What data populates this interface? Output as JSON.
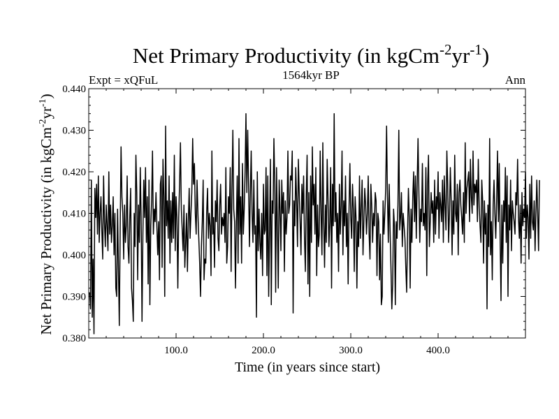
{
  "chart_data": {
    "type": "line",
    "title": "Net Primary Productivity (in kgCm",
    "title_sup1": "-2",
    "title_mid": "yr",
    "title_sup2": "-1",
    "title_end": ")",
    "subtitle_left": "Expt = xQFuL",
    "subtitle_center": "1564kyr BP",
    "subtitle_right": "Ann",
    "xlabel": "Time (in years since start)",
    "ylabel": "Net Primary Productivity (in kgCm",
    "ylabel_sup1": "-2",
    "ylabel_mid": "yr",
    "ylabel_sup2": "-1",
    "ylabel_end": ")",
    "xlim": [
      0,
      500
    ],
    "ylim": [
      0.38,
      0.44
    ],
    "xticks": [
      100,
      200,
      300,
      400
    ],
    "xtick_labels": [
      "100.0",
      "200.0",
      "300.0",
      "400.0"
    ],
    "yticks": [
      0.38,
      0.39,
      0.4,
      0.41,
      0.42,
      0.43,
      0.44
    ],
    "ytick_labels": [
      "0.380",
      "0.390",
      "0.400",
      "0.410",
      "0.420",
      "0.430",
      "0.440"
    ],
    "series": [
      {
        "name": "Ann",
        "x_start": 1,
        "x_step": 1,
        "values": [
          0.391,
          0.387,
          0.418,
          0.385,
          0.399,
          0.381,
          0.416,
          0.409,
          0.417,
          0.405,
          0.419,
          0.403,
          0.41,
          0.414,
          0.406,
          0.399,
          0.419,
          0.408,
          0.402,
          0.412,
          0.407,
          0.401,
          0.42,
          0.405,
          0.412,
          0.403,
          0.407,
          0.414,
          0.4,
          0.41,
          0.392,
          0.39,
          0.411,
          0.397,
          0.383,
          0.406,
          0.426,
          0.414,
          0.41,
          0.399,
          0.412,
          0.403,
          0.407,
          0.419,
          0.402,
          0.398,
          0.409,
          0.416,
          0.392,
          0.389,
          0.384,
          0.41,
          0.402,
          0.424,
          0.415,
          0.394,
          0.412,
          0.403,
          0.421,
          0.409,
          0.384,
          0.405,
          0.418,
          0.409,
          0.421,
          0.403,
          0.414,
          0.393,
          0.418,
          0.388,
          0.407,
          0.413,
          0.425,
          0.405,
          0.411,
          0.408,
          0.415,
          0.407,
          0.4,
          0.408,
          0.394,
          0.417,
          0.419,
          0.397,
          0.423,
          0.414,
          0.39,
          0.431,
          0.407,
          0.413,
          0.404,
          0.419,
          0.398,
          0.413,
          0.403,
          0.415,
          0.404,
          0.424,
          0.401,
          0.414,
          0.409,
          0.392,
          0.409,
          0.417,
          0.427,
          0.411,
          0.406,
          0.401,
          0.412,
          0.397,
          0.403,
          0.41,
          0.396,
          0.408,
          0.416,
          0.404,
          0.41,
          0.415,
          0.428,
          0.417,
          0.422,
          0.41,
          0.405,
          0.418,
          0.41,
          0.404,
          0.398,
          0.39,
          0.402,
          0.408,
          0.418,
          0.394,
          0.399,
          0.398,
          0.41,
          0.416,
          0.404,
          0.41,
          0.407,
          0.395,
          0.425,
          0.405,
          0.409,
          0.397,
          0.413,
          0.408,
          0.418,
          0.404,
          0.401,
          0.412,
          0.417,
          0.405,
          0.409,
          0.407,
          0.41,
          0.403,
          0.421,
          0.398,
          0.402,
          0.414,
          0.41,
          0.421,
          0.396,
          0.416,
          0.43,
          0.411,
          0.408,
          0.392,
          0.408,
          0.419,
          0.398,
          0.428,
          0.405,
          0.414,
          0.398,
          0.422,
          0.405,
          0.411,
          0.42,
          0.434,
          0.415,
          0.43,
          0.417,
          0.402,
          0.415,
          0.425,
          0.41,
          0.403,
          0.418,
          0.405,
          0.407,
          0.385,
          0.42,
          0.401,
          0.411,
          0.403,
          0.399,
          0.41,
          0.395,
          0.417,
          0.405,
          0.406,
          0.421,
          0.395,
          0.419,
          0.39,
          0.405,
          0.423,
          0.388,
          0.413,
          0.41,
          0.428,
          0.417,
          0.391,
          0.421,
          0.407,
          0.392,
          0.418,
          0.411,
          0.401,
          0.418,
          0.41,
          0.415,
          0.396,
          0.413,
          0.405,
          0.409,
          0.425,
          0.41,
          0.412,
          0.419,
          0.418,
          0.425,
          0.386,
          0.413,
          0.407,
          0.421,
          0.413,
          0.402,
          0.423,
          0.415,
          0.408,
          0.4,
          0.417,
          0.41,
          0.419,
          0.404,
          0.396,
          0.414,
          0.424,
          0.393,
          0.415,
          0.39,
          0.419,
          0.403,
          0.426,
          0.412,
          0.417,
          0.405,
          0.421,
          0.395,
          0.412,
          0.402,
          0.405,
          0.425,
          0.41,
          0.4,
          0.427,
          0.408,
          0.397,
          0.412,
          0.403,
          0.423,
          0.413,
          0.402,
          0.408,
          0.421,
          0.392,
          0.417,
          0.407,
          0.434,
          0.408,
          0.415,
          0.403,
          0.41,
          0.396,
          0.417,
          0.405,
          0.412,
          0.425,
          0.4,
          0.413,
          0.407,
          0.419,
          0.402,
          0.41,
          0.393,
          0.411,
          0.422,
          0.409,
          0.404,
          0.417,
          0.411,
          0.396,
          0.414,
          0.409,
          0.392,
          0.408,
          0.402,
          0.419,
          0.404,
          0.411,
          0.418,
          0.4,
          0.408,
          0.416,
          0.412,
          0.405,
          0.41,
          0.419,
          0.405,
          0.399,
          0.417,
          0.412,
          0.403,
          0.41,
          0.407,
          0.415,
          0.413,
          0.395,
          0.41,
          0.408,
          0.394,
          0.405,
          0.388,
          0.39,
          0.413,
          0.405,
          0.41,
          0.416,
          0.431,
          0.414,
          0.403,
          0.417,
          0.406,
          0.397,
          0.387,
          0.393,
          0.411,
          0.407,
          0.388,
          0.408,
          0.404,
          0.412,
          0.43,
          0.406,
          0.409,
          0.415,
          0.402,
          0.41,
          0.407,
          0.404,
          0.397,
          0.391,
          0.405,
          0.416,
          0.409,
          0.392,
          0.411,
          0.403,
          0.414,
          0.42,
          0.408,
          0.419,
          0.404,
          0.417,
          0.428,
          0.415,
          0.403,
          0.411,
          0.408,
          0.422,
          0.407,
          0.41,
          0.406,
          0.421,
          0.395,
          0.417,
          0.424,
          0.402,
          0.408,
          0.415,
          0.41,
          0.413,
          0.403,
          0.418,
          0.405,
          0.414,
          0.411,
          0.42,
          0.404,
          0.415,
          0.412,
          0.408,
          0.418,
          0.403,
          0.419,
          0.412,
          0.406,
          0.425,
          0.417,
          0.403,
          0.41,
          0.421,
          0.413,
          0.4,
          0.413,
          0.405,
          0.424,
          0.41,
          0.408,
          0.417,
          0.4,
          0.415,
          0.418,
          0.412,
          0.409,
          0.405,
          0.415,
          0.403,
          0.427,
          0.41,
          0.416,
          0.418,
          0.42,
          0.408,
          0.423,
          0.414,
          0.41,
          0.425,
          0.412,
          0.417,
          0.415,
          0.418,
          0.408,
          0.423,
          0.412,
          0.407,
          0.403,
          0.418,
          0.413,
          0.398,
          0.413,
          0.405,
          0.41,
          0.387,
          0.412,
          0.402,
          0.428,
          0.4,
          0.408,
          0.394,
          0.412,
          0.418,
          0.41,
          0.404,
          0.413,
          0.425,
          0.408,
          0.422,
          0.404,
          0.389,
          0.412,
          0.398,
          0.413,
          0.408,
          0.421,
          0.403,
          0.419,
          0.39,
          0.412,
          0.406,
          0.418,
          0.401,
          0.413,
          0.41,
          0.408,
          0.405,
          0.415,
          0.412,
          0.423,
          0.409,
          0.404,
          0.412,
          0.398,
          0.415,
          0.407,
          0.411,
          0.409,
          0.42,
          0.404,
          0.412,
          0.409,
          0.399,
          0.417,
          0.404,
          0.419,
          0.408,
          0.406,
          0.413,
          0.401,
          0.41,
          0.418,
          0.41,
          0.401,
          0.418
        ]
      }
    ]
  }
}
